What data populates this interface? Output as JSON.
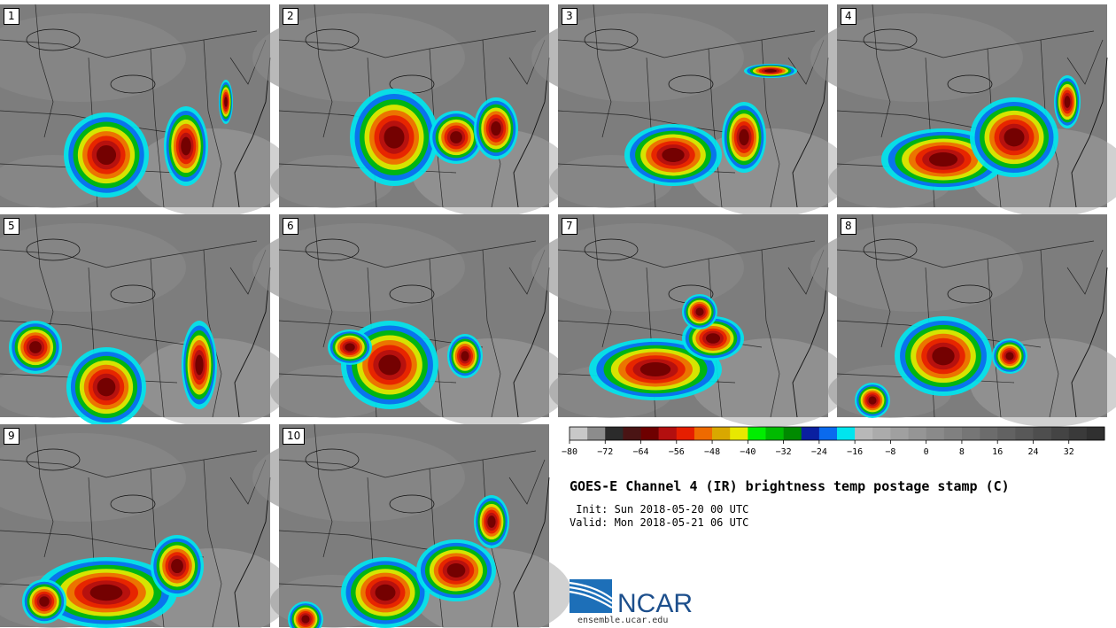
{
  "panels": [
    {
      "label": "1",
      "storm": "large compact MCS over Ohio Valley, secondary band east"
    },
    {
      "label": "2",
      "storm": "MCS over Ohio Valley with line to the northeast"
    },
    {
      "label": "3",
      "storm": "elongated convection along frontal zone"
    },
    {
      "label": "4",
      "storm": "widespread convection across mid-Atlantic"
    },
    {
      "label": "5",
      "storm": "two cores with eastern band"
    },
    {
      "label": "6",
      "storm": "central MCS with embedded cold core"
    },
    {
      "label": "7",
      "storm": "broad convection across southern region"
    },
    {
      "label": "8",
      "storm": "compact MCS with coastal clusters"
    },
    {
      "label": "9",
      "storm": "broad convection band across south"
    },
    {
      "label": "10",
      "storm": "scattered clusters and northeast band"
    }
  ],
  "colorbar": {
    "ticks": [
      "−80",
      "−72",
      "−64",
      "−56",
      "−48",
      "−40",
      "−32",
      "−24",
      "−16",
      "−8",
      "0",
      "8",
      "16",
      "24",
      "32"
    ],
    "colors": [
      "#c8c8c8",
      "#8c8c8c",
      "#2b2b2b",
      "#4a1414",
      "#6e0000",
      "#b30f0f",
      "#e61e00",
      "#ee6a00",
      "#d9a800",
      "#e8e800",
      "#00ee00",
      "#00bb00",
      "#008a00",
      "#0a1fa0",
      "#0a6aee",
      "#00e5ee",
      "#b8b8b8",
      "#ababab",
      "#a0a0a0",
      "#959595",
      "#8a8a8a",
      "#808080",
      "#767676",
      "#6c6c6c",
      "#626262",
      "#585858",
      "#4e4e4e",
      "#444444",
      "#3a3a3a",
      "#303030"
    ]
  },
  "title": "GOES-E Channel 4 (IR) brightness temp postage stamp (C)",
  "init": " Init: Sun 2018-05-20 00 UTC",
  "valid": "Valid: Mon 2018-05-21 06 UTC",
  "logo_text": "NCAR",
  "site": "ensemble.ucar.edu"
}
